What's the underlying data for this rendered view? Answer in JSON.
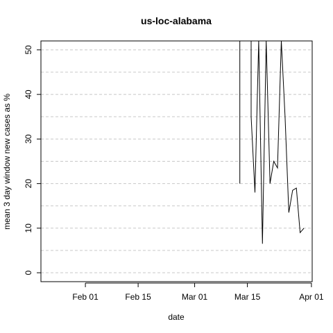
{
  "chart_data": {
    "type": "line",
    "title": "us-loc-alabama",
    "xlabel": "date",
    "ylabel": "mean  3  day window new cases as %",
    "x_tick_labels": [
      "Feb 01",
      "Feb 15",
      "Mar 01",
      "Mar 15",
      "Apr 01"
    ],
    "x_tick_dates": [
      "2020-02-01",
      "2020-02-15",
      "2020-03-01",
      "2020-03-15",
      "2020-04-01"
    ],
    "y_tick_labels": [
      "0",
      "10",
      "20",
      "30",
      "40",
      "50"
    ],
    "y_ticks": [
      0,
      10,
      20,
      30,
      40,
      50
    ],
    "xlim": [
      "2020-01-21",
      "2020-04-01"
    ],
    "ylim": [
      -2,
      52
    ],
    "y_gridlines": [
      0,
      5,
      10,
      15,
      20,
      25,
      30,
      35,
      40,
      45,
      50
    ],
    "grid": "horizontal dashed",
    "series": [
      {
        "color": "#000000",
        "points": [
          {
            "x": "2020-03-13",
            "y": 20
          },
          {
            "x": "2020-03-13",
            "y": 52
          },
          {
            "x": "2020-03-16",
            "y": 52
          },
          {
            "x": "2020-03-16",
            "y": 35
          },
          {
            "x": "2020-03-17",
            "y": 18
          },
          {
            "x": "2020-03-18",
            "y": 52
          },
          {
            "x": "2020-03-19",
            "y": 6.5
          },
          {
            "x": "2020-03-20",
            "y": 52
          },
          {
            "x": "2020-03-21",
            "y": 20
          },
          {
            "x": "2020-03-22",
            "y": 25
          },
          {
            "x": "2020-03-23",
            "y": 23.5
          },
          {
            "x": "2020-03-24",
            "y": 52
          },
          {
            "x": "2020-03-25",
            "y": 35
          },
          {
            "x": "2020-03-26",
            "y": 13.5
          },
          {
            "x": "2020-03-27",
            "y": 18.5
          },
          {
            "x": "2020-03-28",
            "y": 19
          },
          {
            "x": "2020-03-29",
            "y": 9
          },
          {
            "x": "2020-03-30",
            "y": 10
          }
        ]
      }
    ]
  }
}
